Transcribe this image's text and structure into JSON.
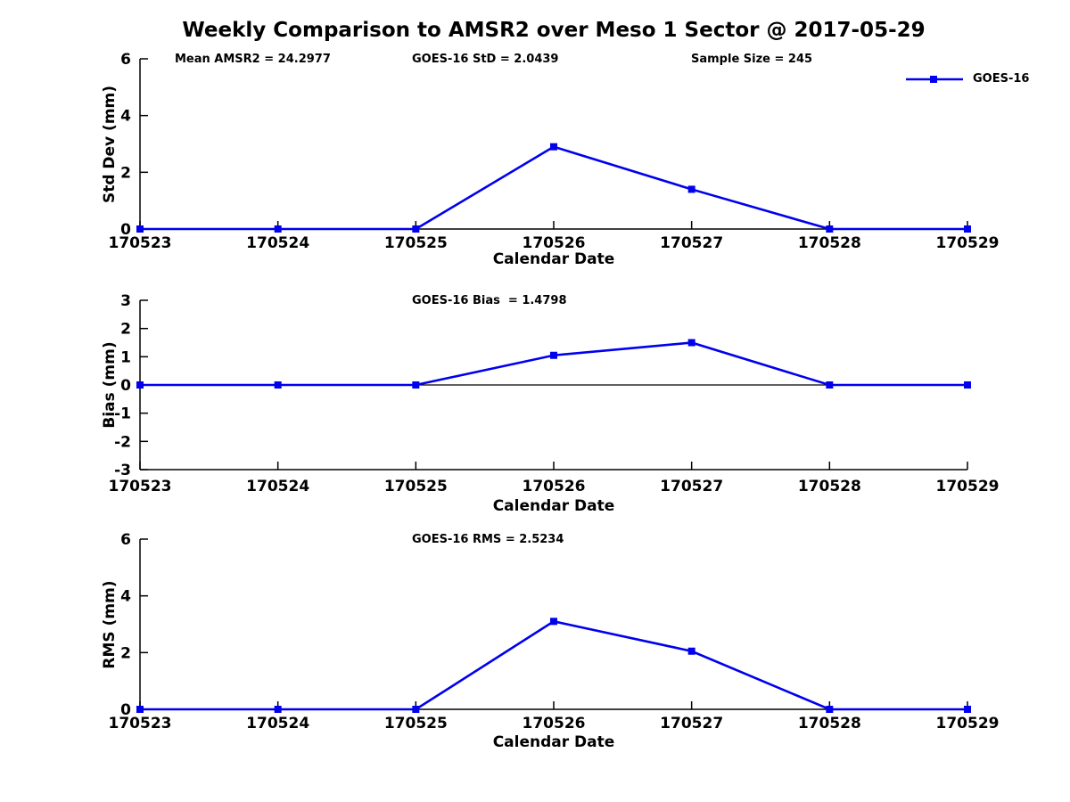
{
  "title": "Weekly Comparison to AMSR2 over Meso 1 Sector @ 2017-05-29",
  "legend": {
    "label": "GOES-16",
    "position": "top-right"
  },
  "colors": {
    "series": "#0000EE",
    "axis": "#000000",
    "text": "#000000",
    "background": "#FFFFFF"
  },
  "chart_data": [
    {
      "type": "line",
      "ylabel": "Std Dev (mm)",
      "xlabel": "Calendar Date",
      "categories": [
        "170523",
        "170524",
        "170525",
        "170526",
        "170527",
        "170528",
        "170529"
      ],
      "series": [
        {
          "name": "GOES-16",
          "marker": "square",
          "values": [
            0,
            0,
            0,
            2.9,
            1.4,
            0,
            0
          ]
        }
      ],
      "ylim": [
        0,
        6
      ],
      "yticks": [
        0,
        2,
        4,
        6
      ],
      "grid": false,
      "annotations": [
        "Mean AMSR2 = 24.2977",
        "GOES-16 StD = 2.0439",
        "Sample Size = 245"
      ]
    },
    {
      "type": "line",
      "ylabel": "Bias (mm)",
      "xlabel": "Calendar Date",
      "categories": [
        "170523",
        "170524",
        "170525",
        "170526",
        "170527",
        "170528",
        "170529"
      ],
      "series": [
        {
          "name": "GOES-16",
          "marker": "square",
          "values": [
            0,
            0,
            0,
            1.05,
            1.5,
            0,
            0
          ]
        }
      ],
      "ylim": [
        -3,
        3
      ],
      "yticks": [
        -3,
        -2,
        -1,
        0,
        1,
        2,
        3
      ],
      "zero_line": true,
      "grid": false,
      "annotations": [
        "GOES-16 Bias  = 1.4798"
      ]
    },
    {
      "type": "line",
      "ylabel": "RMS (mm)",
      "xlabel": "Calendar Date",
      "categories": [
        "170523",
        "170524",
        "170525",
        "170526",
        "170527",
        "170528",
        "170529"
      ],
      "series": [
        {
          "name": "GOES-16",
          "marker": "square",
          "values": [
            0,
            0,
            0,
            3.1,
            2.05,
            0,
            0
          ]
        }
      ],
      "ylim": [
        0,
        6
      ],
      "yticks": [
        0,
        2,
        4,
        6
      ],
      "grid": false,
      "annotations": [
        "GOES-16 RMS = 2.5234"
      ]
    }
  ]
}
